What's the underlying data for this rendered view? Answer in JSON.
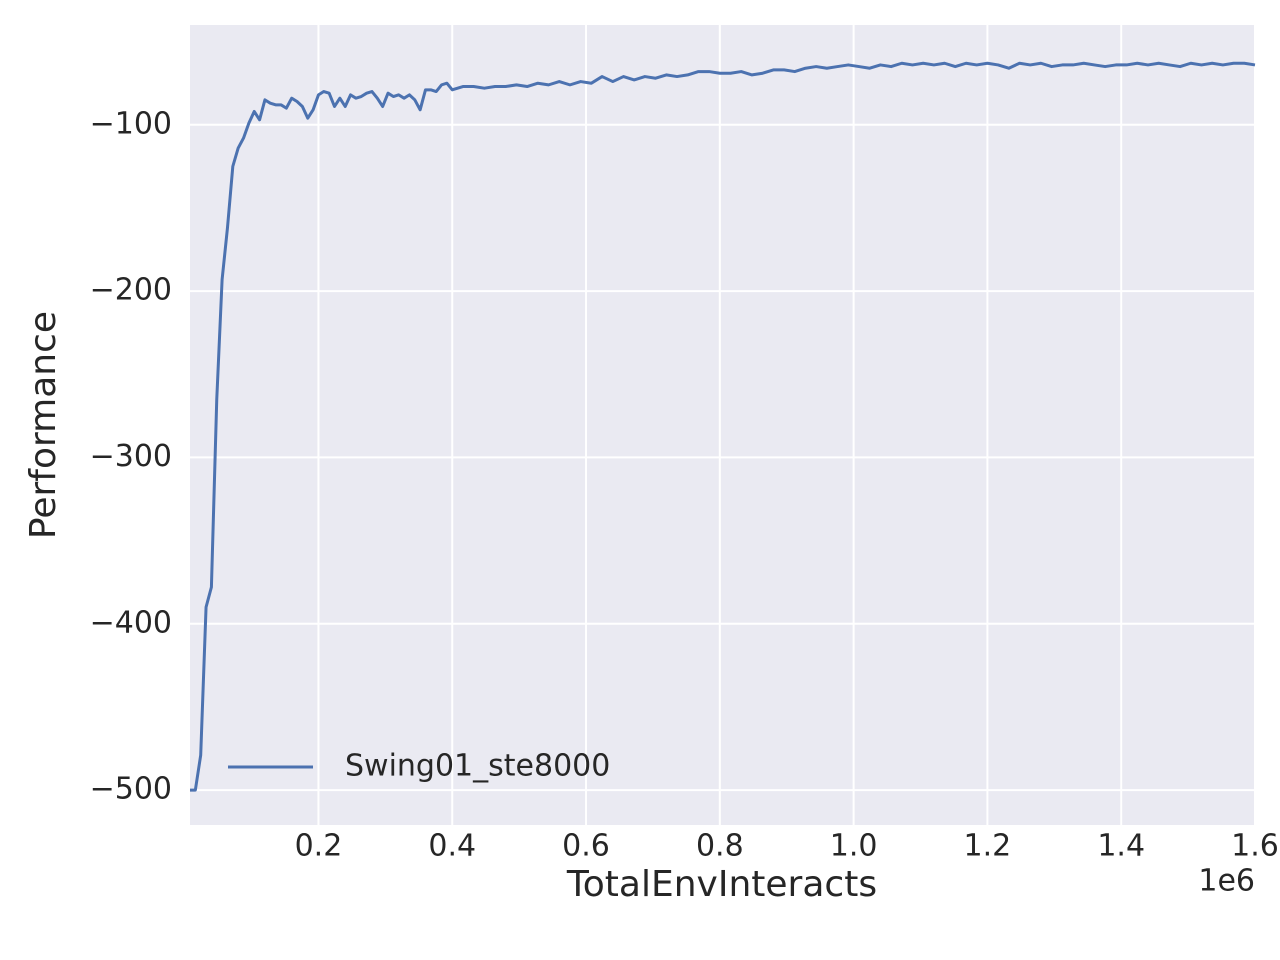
{
  "chart_data": {
    "type": "line",
    "x_label": "TotalEnvInteracts",
    "y_label": "Performance",
    "x_offset_label": "1e6",
    "xlim": [
      0.008,
      1.6
    ],
    "ylim": [
      -521,
      -40
    ],
    "xticks": [
      0.2,
      0.4,
      0.6,
      0.8,
      {
        "value": 1.0,
        "label": "1.0"
      },
      1.2,
      1.4,
      1.6
    ],
    "yticks": [
      {
        "value": -100,
        "label": "−100"
      },
      {
        "value": -200,
        "label": "−200"
      },
      {
        "value": -300,
        "label": "−300"
      },
      {
        "value": -400,
        "label": "−400"
      },
      {
        "value": -500,
        "label": "−500"
      }
    ],
    "grid": true,
    "legend_position": "lower left",
    "x": [
      0.008,
      0.016,
      0.024,
      0.032,
      0.04,
      0.048,
      0.056,
      0.064,
      0.072,
      0.08,
      0.088,
      0.096,
      0.104,
      0.112,
      0.12,
      0.128,
      0.136,
      0.144,
      0.152,
      0.16,
      0.168,
      0.176,
      0.184,
      0.192,
      0.2,
      0.208,
      0.216,
      0.224,
      0.232,
      0.24,
      0.248,
      0.256,
      0.264,
      0.272,
      0.28,
      0.288,
      0.296,
      0.304,
      0.312,
      0.32,
      0.328,
      0.336,
      0.344,
      0.352,
      0.36,
      0.368,
      0.376,
      0.384,
      0.392,
      0.4,
      0.416,
      0.432,
      0.448,
      0.464,
      0.48,
      0.496,
      0.512,
      0.528,
      0.544,
      0.56,
      0.576,
      0.592,
      0.608,
      0.624,
      0.64,
      0.656,
      0.672,
      0.688,
      0.704,
      0.72,
      0.736,
      0.752,
      0.768,
      0.784,
      0.8,
      0.816,
      0.832,
      0.848,
      0.864,
      0.88,
      0.896,
      0.912,
      0.928,
      0.944,
      0.96,
      0.976,
      0.992,
      1.008,
      1.024,
      1.04,
      1.056,
      1.072,
      1.088,
      1.104,
      1.12,
      1.136,
      1.152,
      1.168,
      1.184,
      1.2,
      1.216,
      1.232,
      1.248,
      1.264,
      1.28,
      1.296,
      1.312,
      1.328,
      1.344,
      1.36,
      1.376,
      1.392,
      1.408,
      1.424,
      1.44,
      1.456,
      1.472,
      1.488,
      1.504,
      1.52,
      1.536,
      1.552,
      1.568,
      1.584,
      1.6
    ],
    "series": [
      {
        "name": "Swing01_ste8000",
        "color": "#4c72b0",
        "values": [
          -500,
          -500,
          -479,
          -390,
          -378,
          -265,
          -193,
          -162,
          -125,
          -114,
          -108,
          -99,
          -92,
          -97,
          -85,
          -87,
          -88,
          -88,
          -90,
          -84,
          -86,
          -89,
          -96,
          -91,
          -82,
          -80,
          -81,
          -89,
          -84,
          -89,
          -82,
          -84,
          -83,
          -81,
          -80,
          -84,
          -89,
          -81,
          -83,
          -82,
          -84,
          -82,
          -85,
          -91,
          -79,
          -79,
          -80,
          -76,
          -75,
          -79,
          -77,
          -77,
          -78,
          -77,
          -77,
          -76,
          -77,
          -75,
          -76,
          -74,
          -76,
          -74,
          -75,
          -71,
          -74,
          -71,
          -73,
          -71,
          -72,
          -70,
          -71,
          -70,
          -68,
          -68,
          -69,
          -69,
          -68,
          -70,
          -69,
          -67,
          -67,
          -68,
          -66,
          -65,
          -66,
          -65,
          -64,
          -65,
          -66,
          -64,
          -65,
          -63,
          -64,
          -63,
          -64,
          -63,
          -65,
          -63,
          -64,
          -63,
          -64,
          -66,
          -63,
          -64,
          -63,
          -65,
          -64,
          -64,
          -63,
          -64,
          -65,
          -64,
          -64,
          -63,
          -64,
          -63,
          -64,
          -65,
          -63,
          -64,
          -63,
          -64,
          -63,
          -63,
          -64
        ]
      }
    ]
  }
}
